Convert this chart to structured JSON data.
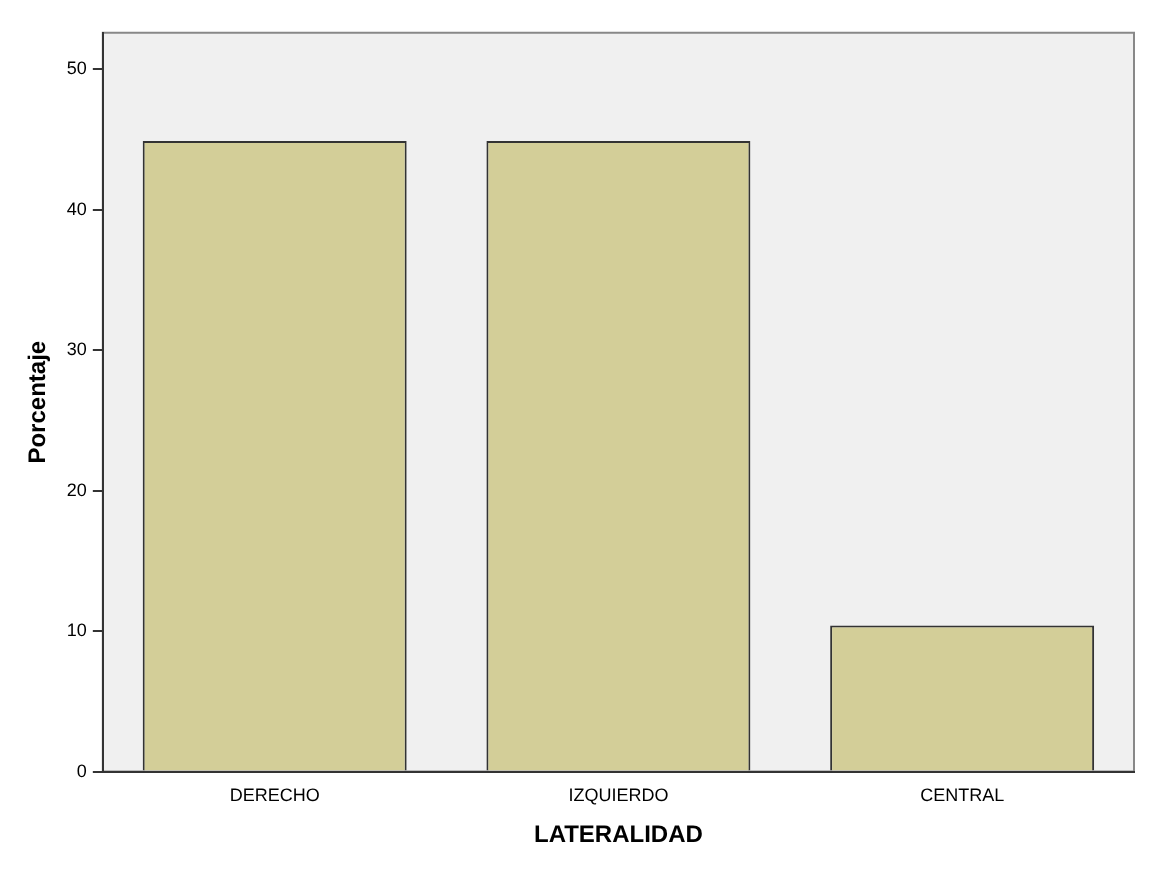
{
  "chart_data": {
    "type": "bar",
    "xlabel": "LATERALIDAD",
    "ylabel": "Porcentaje",
    "categories": [
      "DERECHO",
      "IZQUIERDO",
      "CENTRAL"
    ],
    "values": [
      44.9,
      44.9,
      10.4
    ],
    "color": "#d3ce98",
    "ylim": [
      0,
      52.6
    ],
    "yticks": [
      0,
      10,
      20,
      30,
      40,
      50
    ],
    "grid": false,
    "legend": false
  }
}
